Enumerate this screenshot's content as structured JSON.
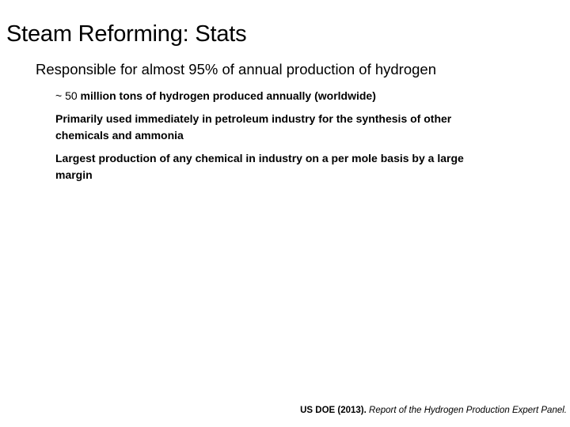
{
  "slide": {
    "title": "Steam Reforming: Stats",
    "bullet_level1": "Responsible for almost 95% of annual production of hydrogen",
    "sub_bullets": [
      {
        "prefix": "~ 50 ",
        "rest": "million tons of hydrogen produced annually (worldwide)"
      },
      {
        "lines": [
          "Primarily used immediately in petroleum industry for the synthesis of other",
          "chemicals and ammonia"
        ]
      },
      {
        "lines": [
          "Largest production of any chemical in industry on a per mole basis by a large",
          "margin"
        ]
      }
    ],
    "footer": {
      "citation_source": "US DOE (2013).",
      "citation_title": " Report of the Hydrogen Production Expert Panel."
    },
    "colors": {
      "background": "#ffffff",
      "text": "#000000"
    }
  }
}
